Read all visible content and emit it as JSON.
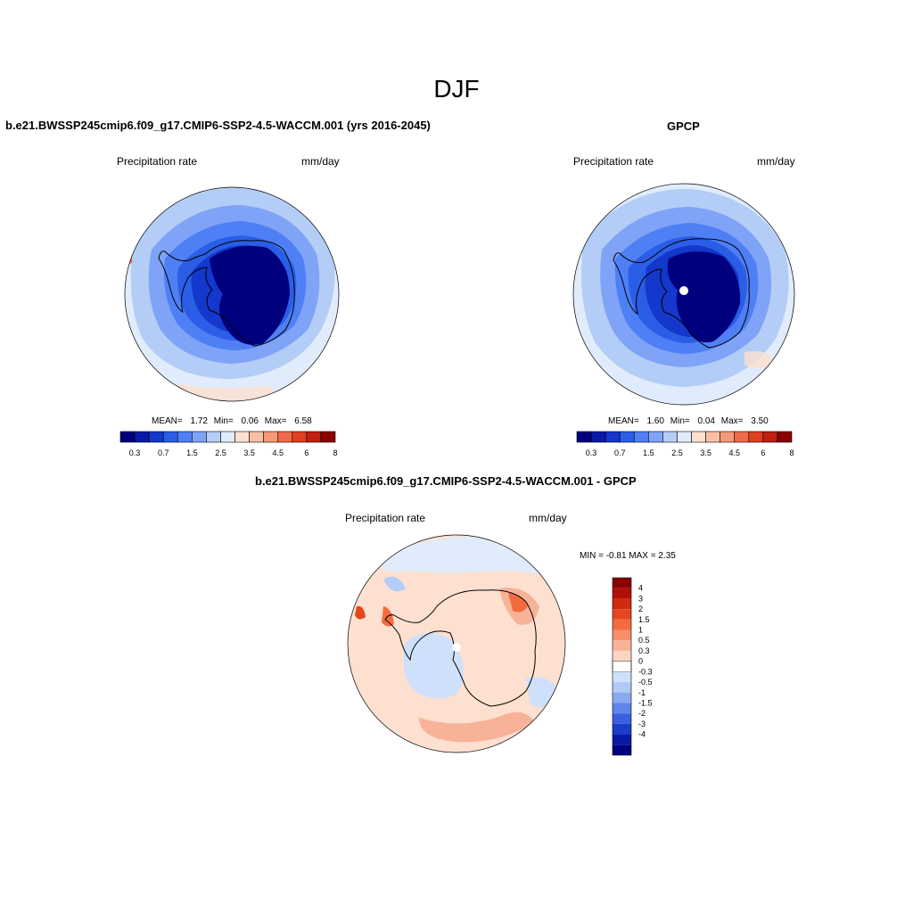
{
  "figure": {
    "season_title": "DJF",
    "colors": {
      "background": "#ffffff",
      "coastline": "#000000"
    }
  },
  "panels": [
    {
      "id": "model",
      "title": "b.e21.BWSSP245cmip6.f09_g17.CMIP6-SSP2-4.5-WACCM.001 (yrs 2016-2045)",
      "left_label": "Precipitation rate",
      "right_label": "mm/day",
      "stats": {
        "mean_label": "MEAN=",
        "mean": "1.72",
        "min_label": "Min=",
        "min": "0.06",
        "max_label": "Max=",
        "max": "6.58"
      },
      "colorbar": {
        "colors": [
          "#00007f",
          "#0a1aa8",
          "#1437cc",
          "#2a5ee6",
          "#4f7ff5",
          "#7fa3f7",
          "#b3cdf7",
          "#e0ecfb",
          "#fde0d0",
          "#f9bfa4",
          "#f59a78",
          "#ef6a4a",
          "#e0401f",
          "#c02010",
          "#8b0000"
        ],
        "tick_labels": [
          "0.3",
          "0.7",
          "1.5",
          "2.5",
          "3.5",
          "4.5",
          "6",
          "8"
        ]
      }
    },
    {
      "id": "obs",
      "title": "GPCP",
      "left_label": "Precipitation rate",
      "right_label": "mm/day",
      "stats": {
        "mean_label": "MEAN=",
        "mean": "1.60",
        "min_label": "Min=",
        "min": "0.04",
        "max_label": "Max=",
        "max": "3.50"
      },
      "colorbar": {
        "colors": [
          "#00007f",
          "#0a1aa8",
          "#1437cc",
          "#2a5ee6",
          "#4f7ff5",
          "#7fa3f7",
          "#b3cdf7",
          "#e0ecfb",
          "#fde0d0",
          "#f9bfa4",
          "#f59a78",
          "#ef6a4a",
          "#e0401f",
          "#c02010",
          "#8b0000"
        ],
        "tick_labels": [
          "0.3",
          "0.7",
          "1.5",
          "2.5",
          "3.5",
          "4.5",
          "6",
          "8"
        ]
      }
    },
    {
      "id": "diff",
      "title": "b.e21.BWSSP245cmip6.f09_g17.CMIP6-SSP2-4.5-WACCM.001 - GPCP",
      "left_label": "Precipitation rate",
      "right_label": "mm/day",
      "stats_text": "MIN =  -0.81 MAX =   2.35",
      "colorbar": {
        "colors": [
          "#8b0000",
          "#b01008",
          "#d02a10",
          "#e5461e",
          "#f26c3f",
          "#f5906a",
          "#f8b298",
          "#fcd6c4",
          "#ffffff",
          "#cfe0fb",
          "#b0c9f5",
          "#8aaaf0",
          "#5f86ea",
          "#3a60e0",
          "#1a3cc8",
          "#0a1aa8",
          "#00007f"
        ],
        "tick_labels": [
          "4",
          "3",
          "2",
          "1.5",
          "1",
          "0.5",
          "0.3",
          "0",
          "-0.3",
          "-0.5",
          "-1",
          "-1.5",
          "-2",
          "-3",
          "-4"
        ]
      }
    }
  ]
}
